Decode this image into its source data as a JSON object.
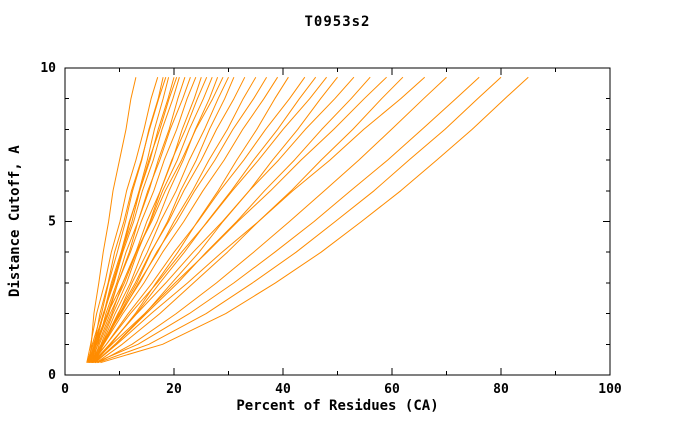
{
  "chart_data": {
    "type": "line",
    "title": "T0953s2",
    "xlabel": "Percent of Residues (CA)",
    "ylabel": "Distance Cutoff, A",
    "xlim": [
      0,
      100
    ],
    "ylim": [
      0,
      10
    ],
    "xticks": [
      0,
      20,
      40,
      60,
      80,
      100
    ],
    "yticks": [
      0,
      5,
      10
    ],
    "x_minor_ticks": [
      10,
      30,
      50,
      70,
      90
    ],
    "y_minor_ticks": [
      1,
      2,
      3,
      4,
      6,
      7,
      8,
      9
    ],
    "grid": false,
    "legend": "none",
    "line_color": "#ff8c00",
    "axis_color": "#000000",
    "background": "#ffffff",
    "y_levels": [
      0.4,
      1,
      2,
      3,
      4,
      5,
      6,
      7,
      8,
      9,
      9.7
    ],
    "curves": [
      [
        4.5,
        4.8,
        5.3,
        6.2,
        7.0,
        8.0,
        8.8,
        10.0,
        11.2,
        12.1,
        13.0
      ],
      [
        4.0,
        4.7,
        5.8,
        7.3,
        8.5,
        10.1,
        11.3,
        13.0,
        14.5,
        15.8,
        17.0
      ],
      [
        4.2,
        5.0,
        6.7,
        8.0,
        9.6,
        11.1,
        12.4,
        14.1,
        15.4,
        17.1,
        18.0
      ],
      [
        4.8,
        5.4,
        6.4,
        7.9,
        9.1,
        10.8,
        12.2,
        14.0,
        15.5,
        17.2,
        18.5
      ],
      [
        4.0,
        5.2,
        7.2,
        8.7,
        10.5,
        11.9,
        13.6,
        15.1,
        16.4,
        18.0,
        19.0
      ],
      [
        4.5,
        5.6,
        7.1,
        8.9,
        10.4,
        12.3,
        13.7,
        15.6,
        17.1,
        18.9,
        20.0
      ],
      [
        5.0,
        5.6,
        7.1,
        8.5,
        10.3,
        11.8,
        13.7,
        15.4,
        17.4,
        19.1,
        20.5
      ],
      [
        4.2,
        5.4,
        7.0,
        9.0,
        10.6,
        12.6,
        14.2,
        16.2,
        17.8,
        19.8,
        21.0
      ],
      [
        4.6,
        5.8,
        8.0,
        9.7,
        11.8,
        13.4,
        15.4,
        17.1,
        19.1,
        20.7,
        22.0
      ],
      [
        5.0,
        6.0,
        7.5,
        9.5,
        11.2,
        13.4,
        15.2,
        17.4,
        19.3,
        21.6,
        23.0
      ],
      [
        4.3,
        5.5,
        7.8,
        9.7,
        12.0,
        14.0,
        16.3,
        18.2,
        20.5,
        22.4,
        24.0
      ],
      [
        4.8,
        6.6,
        8.8,
        11.3,
        13.3,
        15.6,
        17.5,
        19.7,
        21.5,
        23.7,
        25.0
      ],
      [
        5.2,
        6.3,
        8.6,
        10.6,
        13.0,
        15.0,
        17.5,
        19.6,
        22.1,
        24.3,
        26.0
      ],
      [
        4.5,
        6.1,
        8.3,
        10.9,
        13.1,
        15.7,
        17.9,
        20.6,
        22.8,
        25.4,
        27.0
      ],
      [
        5.0,
        6.8,
        9.2,
        12.0,
        14.2,
        16.9,
        19.1,
        21.7,
        23.9,
        26.5,
        28.0
      ],
      [
        4.4,
        5.7,
        7.8,
        10.6,
        13.0,
        15.9,
        18.4,
        21.4,
        24.0,
        27.1,
        29.0
      ],
      [
        5.5,
        7.0,
        9.8,
        12.3,
        15.1,
        17.5,
        20.4,
        22.8,
        25.6,
        28.1,
        30.0
      ],
      [
        4.7,
        7.0,
        10.0,
        13.2,
        15.8,
        18.8,
        21.2,
        24.1,
        26.5,
        29.3,
        31.0
      ],
      [
        5.0,
        6.9,
        9.7,
        12.9,
        15.7,
        19.0,
        21.8,
        25.0,
        27.8,
        31.0,
        33.0
      ],
      [
        4.5,
        6.7,
        10.3,
        13.5,
        17.0,
        20.0,
        23.4,
        26.4,
        29.8,
        32.7,
        35.0
      ],
      [
        5.2,
        7.1,
        10.1,
        13.7,
        16.8,
        20.5,
        23.8,
        27.5,
        30.8,
        34.6,
        37.0
      ],
      [
        4.8,
        7.1,
        10.6,
        14.5,
        17.9,
        21.8,
        25.3,
        29.2,
        32.6,
        36.5,
        39.0
      ],
      [
        5.5,
        8.4,
        12.9,
        16.7,
        20.7,
        24.3,
        28.1,
        31.5,
        35.2,
        38.5,
        41.0
      ],
      [
        5.0,
        7.6,
        11.6,
        16.0,
        20.0,
        24.4,
        28.4,
        32.8,
        36.8,
        41.2,
        44.0
      ],
      [
        5.3,
        8.2,
        13.1,
        17.4,
        21.9,
        26.1,
        30.5,
        34.6,
        39.0,
        43.0,
        46.0
      ],
      [
        4.7,
        7.6,
        12.0,
        16.9,
        21.4,
        26.2,
        30.7,
        35.5,
        40.0,
        44.9,
        48.0
      ],
      [
        5.5,
        9.2,
        14.7,
        19.6,
        24.6,
        29.0,
        33.8,
        38.1,
        42.7,
        46.9,
        50.0
      ],
      [
        5.0,
        8.2,
        13.2,
        18.5,
        23.5,
        28.9,
        33.8,
        39.2,
        44.1,
        49.5,
        53.0
      ],
      [
        5.5,
        9.3,
        14.9,
        20.7,
        25.9,
        31.5,
        36.6,
        42.1,
        47.1,
        52.5,
        56.0
      ],
      [
        5.2,
        8.6,
        14.6,
        20.2,
        26.1,
        31.7,
        37.7,
        43.3,
        49.3,
        54.9,
        59.0
      ],
      [
        5.8,
        10.5,
        17.4,
        23.6,
        29.8,
        35.5,
        41.5,
        47.0,
        52.8,
        58.1,
        62.0
      ],
      [
        5.5,
        9.5,
        15.8,
        22.5,
        28.8,
        35.5,
        41.8,
        48.6,
        54.8,
        61.6,
        66.0
      ],
      [
        6.0,
        12.3,
        20.4,
        27.8,
        34.6,
        41.2,
        47.6,
        53.9,
        59.9,
        65.8,
        70.0
      ],
      [
        5.5,
        13.4,
        22.8,
        31.0,
        38.5,
        45.7,
        52.4,
        59.2,
        65.5,
        71.7,
        76.0
      ],
      [
        6.0,
        15.4,
        25.9,
        34.4,
        42.4,
        49.6,
        56.7,
        63.1,
        69.7,
        75.7,
        80.0
      ],
      [
        6.5,
        17.9,
        29.5,
        38.6,
        47.0,
        54.4,
        61.6,
        68.2,
        74.7,
        80.7,
        85.0
      ]
    ]
  }
}
